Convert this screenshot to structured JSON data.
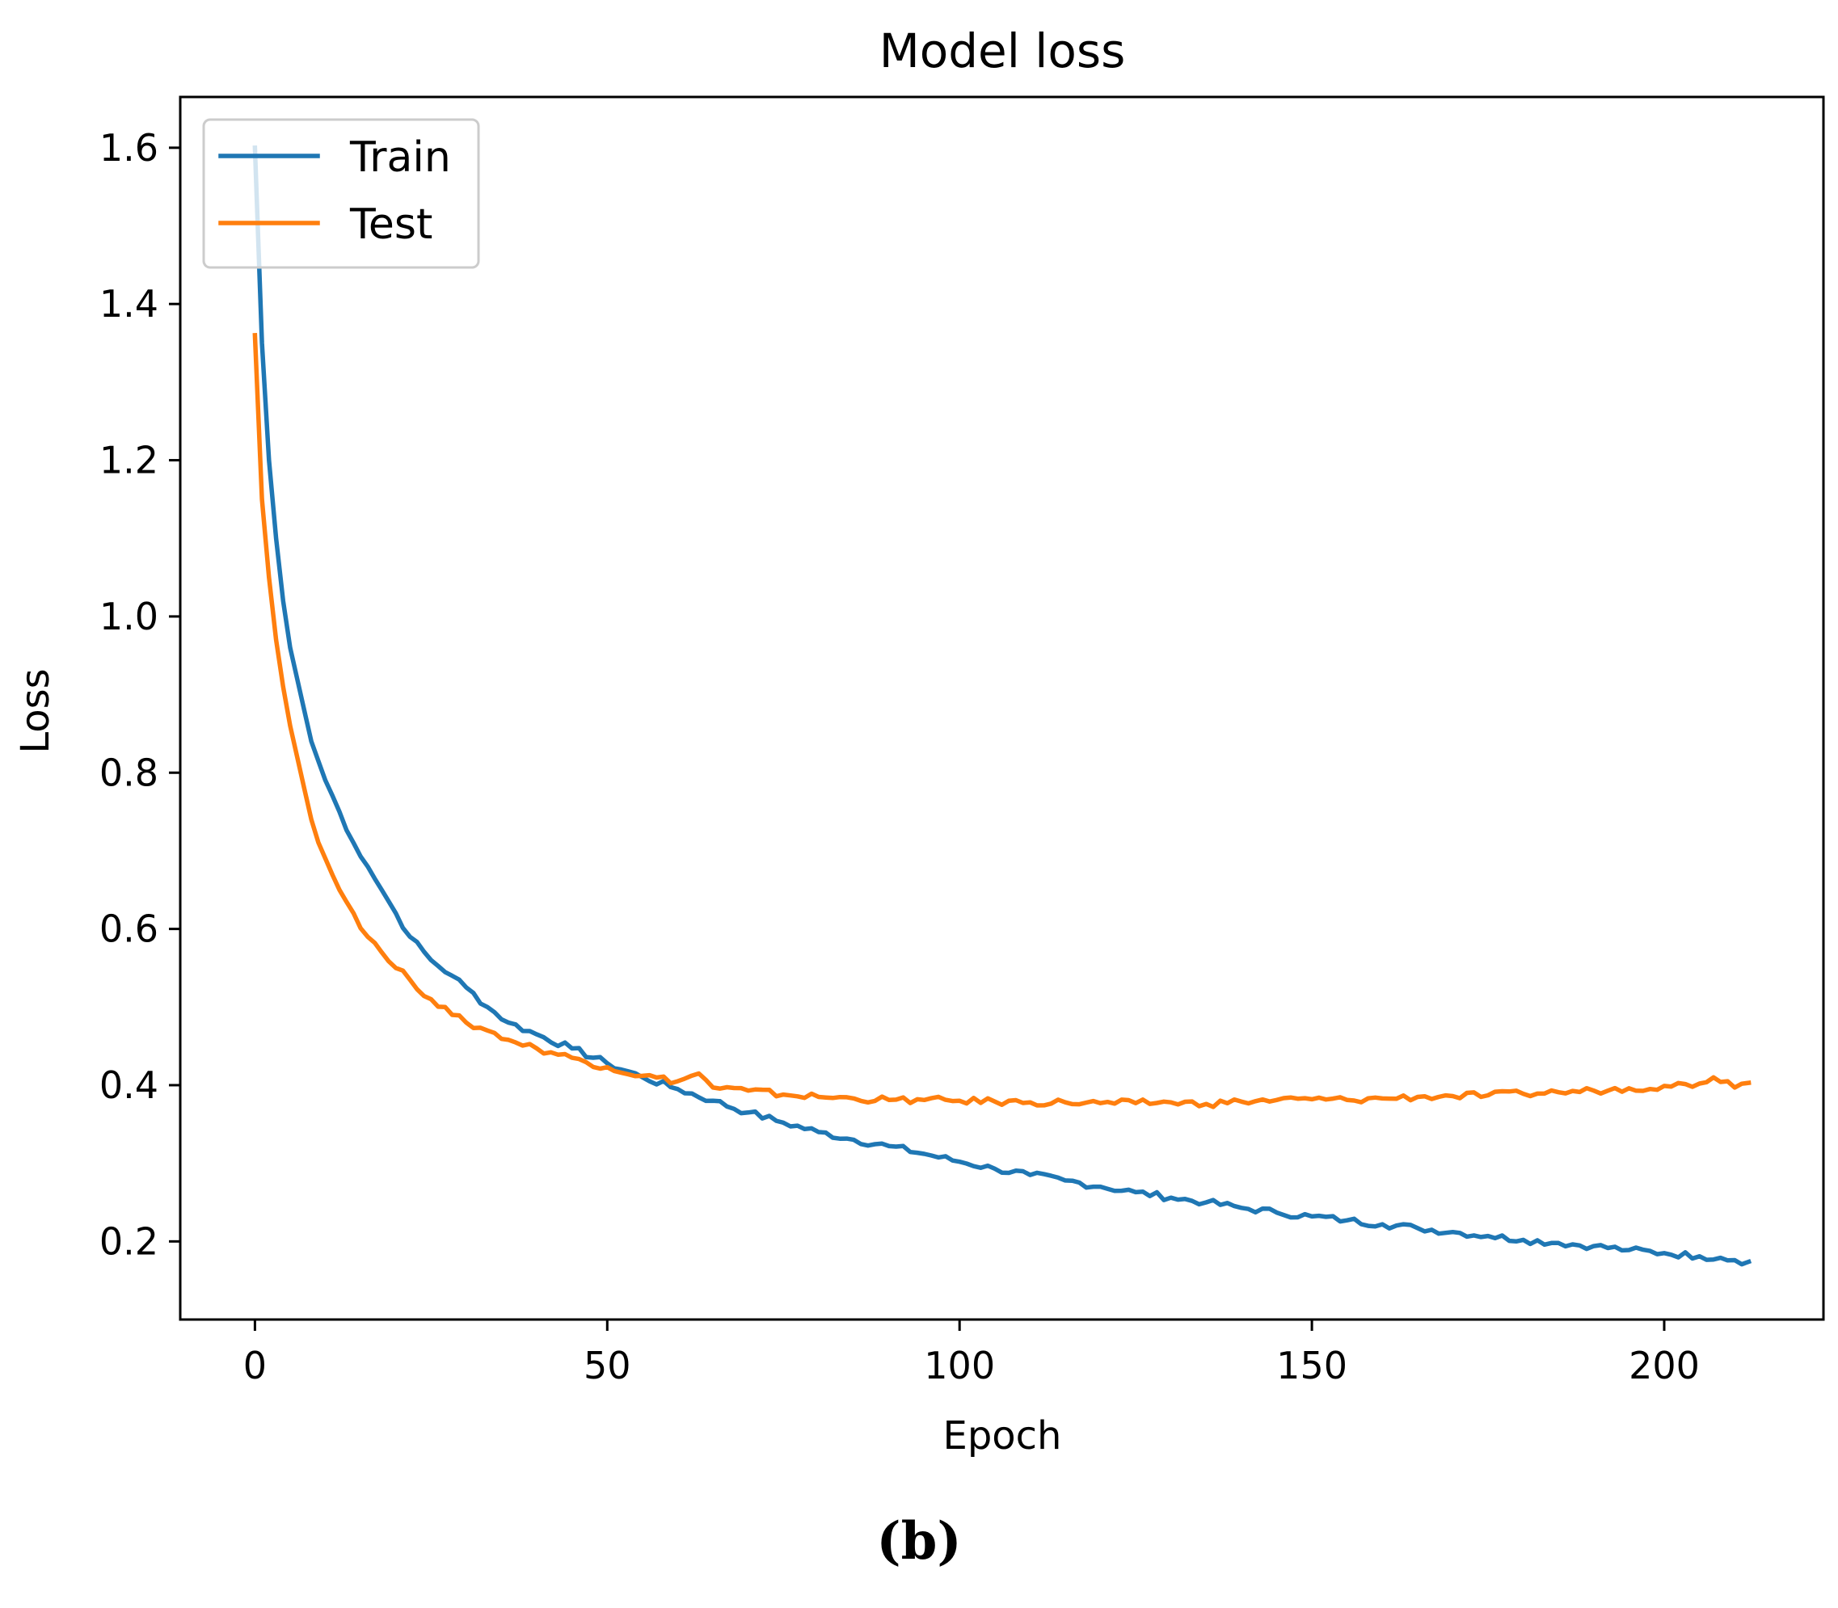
{
  "chart_data": {
    "type": "line",
    "title": "Model loss",
    "xlabel": "Epoch",
    "ylabel": "Loss",
    "xlim": [
      -10.6,
      222.6
    ],
    "ylim": [
      0.1,
      1.665
    ],
    "xticks": [
      0,
      50,
      100,
      150,
      200
    ],
    "xtick_labels": [
      "0",
      "50",
      "100",
      "150",
      "200"
    ],
    "yticks": [
      0.2,
      0.4,
      0.6,
      0.8,
      1.0,
      1.2,
      1.4,
      1.6
    ],
    "ytick_labels": [
      "0.2",
      "0.4",
      "0.6",
      "0.8",
      "1.0",
      "1.2",
      "1.4",
      "1.6"
    ],
    "grid": false,
    "legend_position": "upper-left",
    "series": [
      {
        "name": "Train",
        "color": "#1f77b4",
        "x": [
          0,
          1,
          2,
          3,
          4,
          5,
          6,
          7,
          8,
          10,
          12,
          14,
          16,
          18,
          20,
          22,
          25,
          28,
          30,
          33,
          36,
          40,
          45,
          50,
          55,
          60,
          65,
          70,
          75,
          80,
          85,
          90,
          95,
          100,
          105,
          110,
          115,
          120,
          125,
          130,
          135,
          140,
          145,
          150,
          155,
          160,
          165,
          170,
          175,
          180,
          185,
          190,
          195,
          200,
          205,
          208,
          210,
          212
        ],
        "y": [
          1.6,
          1.35,
          1.2,
          1.1,
          1.02,
          0.96,
          0.92,
          0.88,
          0.84,
          0.79,
          0.75,
          0.71,
          0.68,
          0.65,
          0.62,
          0.59,
          0.56,
          0.54,
          0.525,
          0.5,
          0.48,
          0.465,
          0.447,
          0.428,
          0.41,
          0.395,
          0.38,
          0.365,
          0.352,
          0.34,
          0.33,
          0.322,
          0.312,
          0.302,
          0.293,
          0.285,
          0.278,
          0.27,
          0.263,
          0.256,
          0.25,
          0.243,
          0.237,
          0.232,
          0.227,
          0.222,
          0.217,
          0.212,
          0.207,
          0.202,
          0.198,
          0.194,
          0.189,
          0.185,
          0.181,
          0.179,
          0.176,
          0.174
        ]
      },
      {
        "name": "Test",
        "color": "#ff7f0e",
        "x": [
          0,
          1,
          2,
          3,
          4,
          5,
          6,
          7,
          8,
          10,
          12,
          14,
          16,
          18,
          20,
          22,
          25,
          28,
          30,
          33,
          36,
          40,
          45,
          50,
          55,
          60,
          63,
          65,
          70,
          75,
          80,
          85,
          90,
          95,
          100,
          105,
          110,
          115,
          120,
          125,
          130,
          135,
          140,
          145,
          150,
          155,
          160,
          165,
          170,
          175,
          180,
          185,
          190,
          195,
          200,
          205,
          207,
          209,
          210,
          212
        ],
        "y": [
          1.36,
          1.15,
          1.05,
          0.97,
          0.91,
          0.86,
          0.82,
          0.78,
          0.74,
          0.69,
          0.65,
          0.62,
          0.59,
          0.57,
          0.55,
          0.535,
          0.51,
          0.49,
          0.48,
          0.47,
          0.458,
          0.447,
          0.435,
          0.423,
          0.412,
          0.405,
          0.415,
          0.397,
          0.393,
          0.388,
          0.385,
          0.383,
          0.381,
          0.381,
          0.38,
          0.379,
          0.378,
          0.378,
          0.377,
          0.377,
          0.378,
          0.376,
          0.379,
          0.381,
          0.382,
          0.381,
          0.383,
          0.385,
          0.386,
          0.387,
          0.389,
          0.391,
          0.393,
          0.396,
          0.399,
          0.402,
          0.41,
          0.405,
          0.397,
          0.403
        ]
      }
    ]
  },
  "caption": "(b)"
}
